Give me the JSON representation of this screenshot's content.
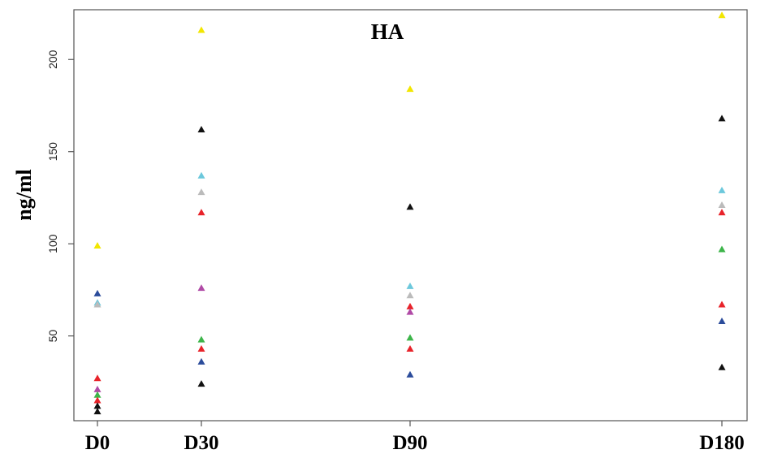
{
  "chart_data": {
    "type": "scatter",
    "title": "HA",
    "xlabel": "",
    "ylabel": "ng/ml",
    "categories": [
      "D0",
      "D30",
      "D90",
      "D180"
    ],
    "ylim": [
      4,
      227
    ],
    "yticks": [
      50,
      100,
      150,
      200
    ],
    "grid": false,
    "legend": "none",
    "marker": "triangle",
    "points": [
      {
        "x": "D0",
        "y": 99,
        "color": "#f2e600"
      },
      {
        "x": "D0",
        "y": 73,
        "color": "#2b4c9b"
      },
      {
        "x": "D0",
        "y": 68,
        "color": "#6cc8dc"
      },
      {
        "x": "D0",
        "y": 67,
        "color": "#bbbbbb"
      },
      {
        "x": "D0",
        "y": 27,
        "color": "#e8232a"
      },
      {
        "x": "D0",
        "y": 21,
        "color": "#b04aa6"
      },
      {
        "x": "D0",
        "y": 18,
        "color": "#3db54a"
      },
      {
        "x": "D0",
        "y": 15,
        "color": "#e8232a"
      },
      {
        "x": "D0",
        "y": 12,
        "color": "#111111"
      },
      {
        "x": "D0",
        "y": 9,
        "color": "#111111"
      },
      {
        "x": "D30",
        "y": 216,
        "color": "#f2e600"
      },
      {
        "x": "D30",
        "y": 162,
        "color": "#111111"
      },
      {
        "x": "D30",
        "y": 137,
        "color": "#6cc8dc"
      },
      {
        "x": "D30",
        "y": 128,
        "color": "#bbbbbb"
      },
      {
        "x": "D30",
        "y": 117,
        "color": "#e8232a"
      },
      {
        "x": "D30",
        "y": 76,
        "color": "#b04aa6"
      },
      {
        "x": "D30",
        "y": 48,
        "color": "#3db54a"
      },
      {
        "x": "D30",
        "y": 43,
        "color": "#e8232a"
      },
      {
        "x": "D30",
        "y": 36,
        "color": "#2b4c9b"
      },
      {
        "x": "D30",
        "y": 24,
        "color": "#111111"
      },
      {
        "x": "D90",
        "y": 184,
        "color": "#f2e600"
      },
      {
        "x": "D90",
        "y": 120,
        "color": "#111111"
      },
      {
        "x": "D90",
        "y": 77,
        "color": "#6cc8dc"
      },
      {
        "x": "D90",
        "y": 72,
        "color": "#bbbbbb"
      },
      {
        "x": "D90",
        "y": 66,
        "color": "#e8232a"
      },
      {
        "x": "D90",
        "y": 63,
        "color": "#b04aa6"
      },
      {
        "x": "D90",
        "y": 49,
        "color": "#3db54a"
      },
      {
        "x": "D90",
        "y": 43,
        "color": "#e8232a"
      },
      {
        "x": "D90",
        "y": 29,
        "color": "#2b4c9b"
      },
      {
        "x": "D180",
        "y": 224,
        "color": "#f2e600"
      },
      {
        "x": "D180",
        "y": 168,
        "color": "#111111"
      },
      {
        "x": "D180",
        "y": 129,
        "color": "#6cc8dc"
      },
      {
        "x": "D180",
        "y": 121,
        "color": "#bbbbbb"
      },
      {
        "x": "D180",
        "y": 117,
        "color": "#e8232a"
      },
      {
        "x": "D180",
        "y": 97,
        "color": "#3db54a"
      },
      {
        "x": "D180",
        "y": 67,
        "color": "#e8232a"
      },
      {
        "x": "D180",
        "y": 58,
        "color": "#2b4c9b"
      },
      {
        "x": "D180",
        "y": 33,
        "color": "#111111"
      }
    ]
  }
}
